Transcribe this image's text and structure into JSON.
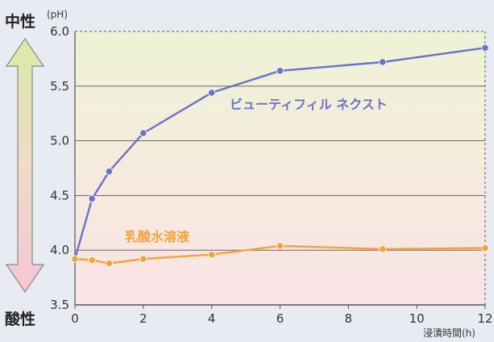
{
  "chart_data": {
    "type": "line",
    "ylabel_unit": "(pH)",
    "xlabel": "浸漬時間(h)",
    "y_top_label": "中性",
    "y_bottom_label": "酸性",
    "ylim": [
      3.5,
      6.0
    ],
    "xlim": [
      0,
      12
    ],
    "y_ticks": [
      3.5,
      4.0,
      4.5,
      5.0,
      5.5,
      6.0
    ],
    "y_tick_labels": [
      "3.5",
      "4.0",
      "4.5",
      "5.0",
      "5.5",
      "6.0"
    ],
    "x_ticks": [
      0,
      2,
      4,
      6,
      8,
      10,
      12
    ],
    "x_tick_labels": [
      "0",
      "2",
      "4",
      "6",
      "8",
      "10",
      "12"
    ],
    "grid": true,
    "series": [
      {
        "name": "ビューティフィル ネクスト",
        "color": "#6b73c9",
        "x": [
          0,
          0.5,
          1,
          2,
          4,
          6,
          9,
          12
        ],
        "y": [
          3.92,
          4.47,
          4.72,
          5.07,
          5.44,
          5.64,
          5.72,
          5.85
        ]
      },
      {
        "name": "乳酸水溶液",
        "color": "#f4a23a",
        "x": [
          0,
          0.5,
          1,
          2,
          4,
          6,
          9,
          12
        ],
        "y": [
          3.92,
          3.91,
          3.88,
          3.92,
          3.96,
          4.04,
          4.01,
          4.02
        ]
      }
    ]
  }
}
